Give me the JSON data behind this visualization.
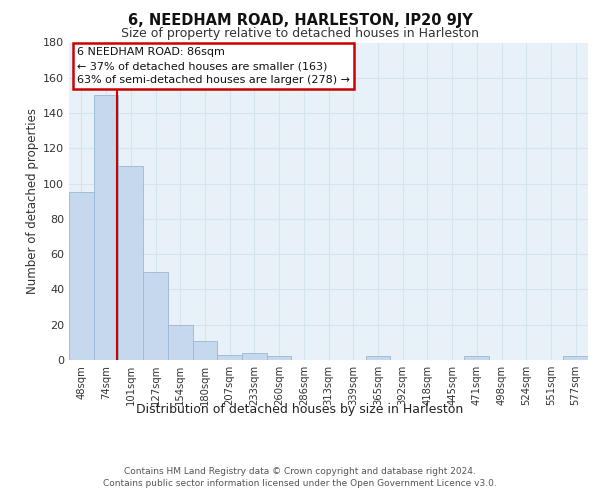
{
  "title": "6, NEEDHAM ROAD, HARLESTON, IP20 9JY",
  "subtitle": "Size of property relative to detached houses in Harleston",
  "xlabel": "Distribution of detached houses by size in Harleston",
  "ylabel": "Number of detached properties",
  "bar_labels": [
    "48sqm",
    "74sqm",
    "101sqm",
    "127sqm",
    "154sqm",
    "180sqm",
    "207sqm",
    "233sqm",
    "260sqm",
    "286sqm",
    "313sqm",
    "339sqm",
    "365sqm",
    "392sqm",
    "418sqm",
    "445sqm",
    "471sqm",
    "498sqm",
    "524sqm",
    "551sqm",
    "577sqm"
  ],
  "bar_values": [
    95,
    150,
    110,
    50,
    20,
    11,
    3,
    4,
    2,
    0,
    0,
    0,
    2,
    0,
    0,
    0,
    2,
    0,
    0,
    0,
    2
  ],
  "bar_color": "#c5d8ed",
  "bar_edge_color": "#99b8d4",
  "ylim": [
    0,
    180
  ],
  "yticks": [
    0,
    20,
    40,
    60,
    80,
    100,
    120,
    140,
    160,
    180
  ],
  "annotation_title": "6 NEEDHAM ROAD: 86sqm",
  "annotation_line1": "← 37% of detached houses are smaller (163)",
  "annotation_line2": "63% of semi-detached houses are larger (278) →",
  "annotation_box_color": "#ffffff",
  "annotation_box_edge": "#cc0000",
  "red_line_color": "#cc0000",
  "grid_color": "#d5e5f0",
  "background_color": "#e8f1f8",
  "footer1": "Contains HM Land Registry data © Crown copyright and database right 2024.",
  "footer2": "Contains public sector information licensed under the Open Government Licence v3.0."
}
